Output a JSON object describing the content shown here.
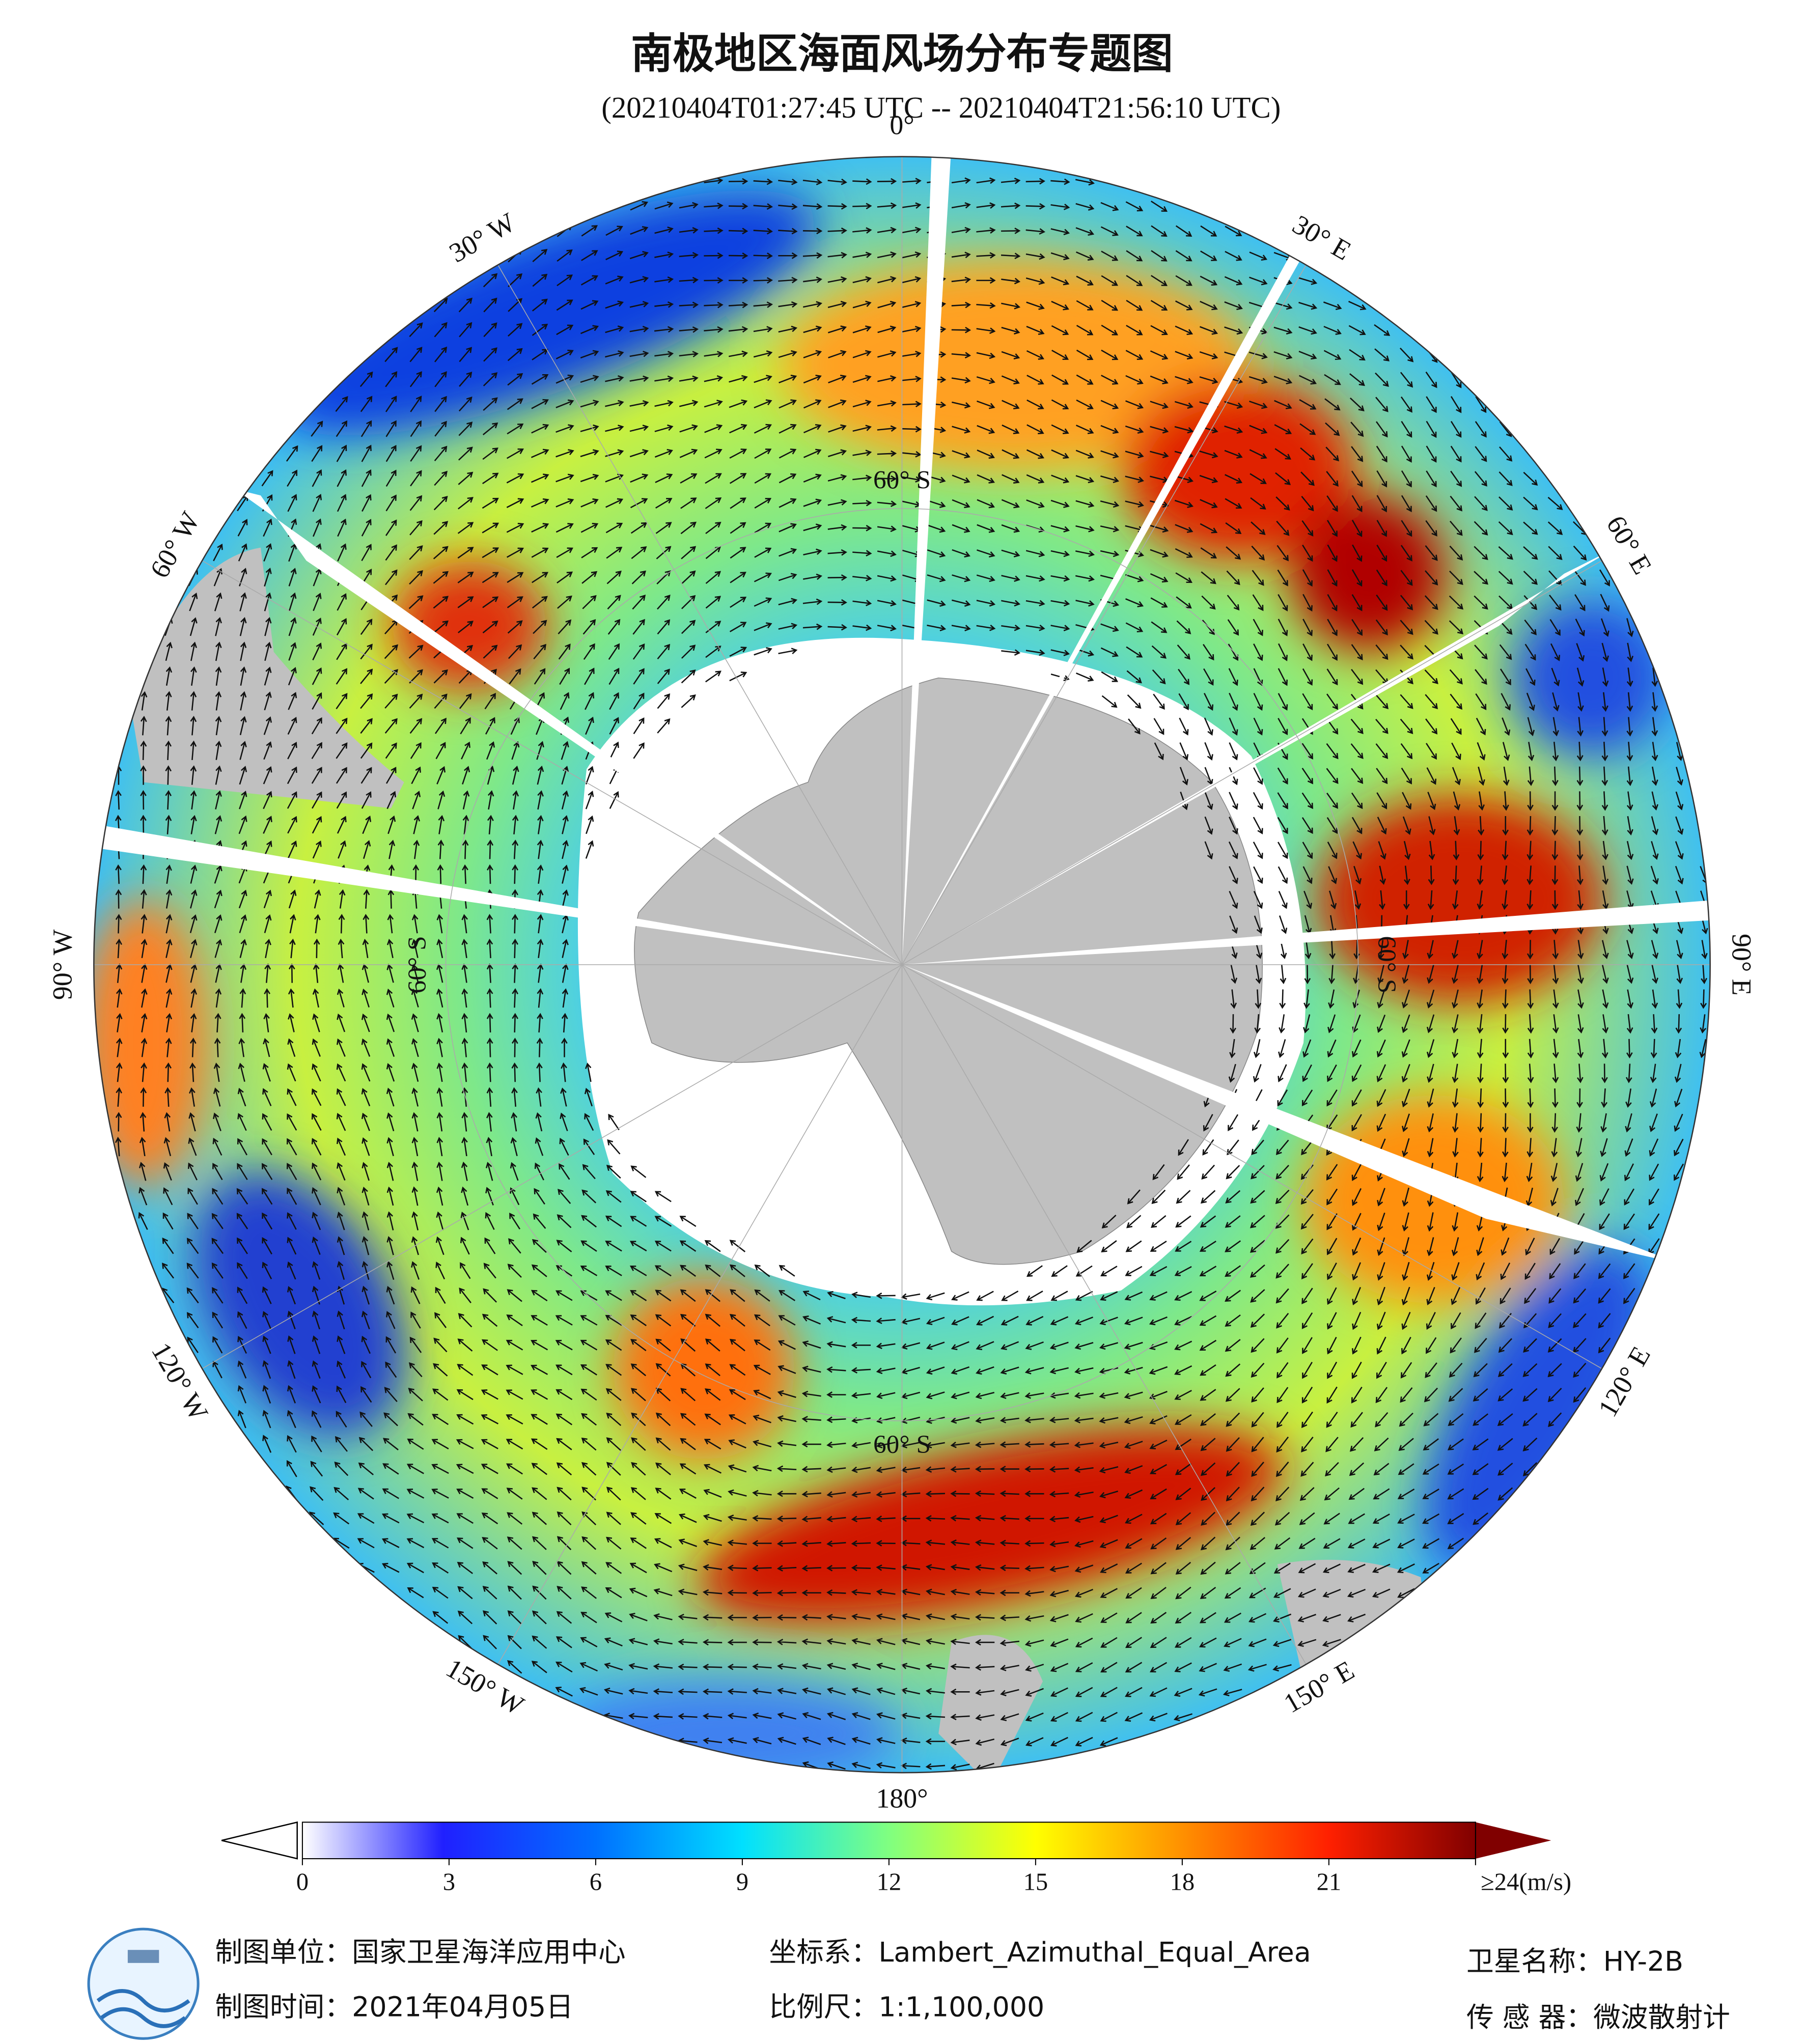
{
  "map": {
    "title": "南极地区海面风场分布专题图",
    "subtitle": "(20210404T01:27:45 UTC -- 20210404T21:56:10 UTC)",
    "lon_labels": [
      "0°",
      "30° E",
      "60° E",
      "90° E",
      "120° E",
      "150° E",
      "180°",
      "150° W",
      "120° W",
      "90° W",
      "60° W",
      "30° W"
    ],
    "lat_labels": [
      "60° S",
      "60° S",
      "60° S",
      "60° S"
    ],
    "colorbar": {
      "range": [
        0,
        24
      ],
      "ticks": [
        0,
        3,
        6,
        9,
        12,
        15,
        18,
        21,
        {
          "value": 24,
          "label": "≥24(m/s)"
        }
      ]
    },
    "footer": {
      "producer": "制图单位：国家卫星海洋应用中心",
      "date": "制图时间：2021年04月05日",
      "projection": "坐标系：Lambert_Azimuthal_Equal_Area",
      "scale": "比例尺：1:1,100,000",
      "satellite": "卫星名称：HY-2B",
      "sensor": "传 感 器：微波散射计"
    }
  }
}
